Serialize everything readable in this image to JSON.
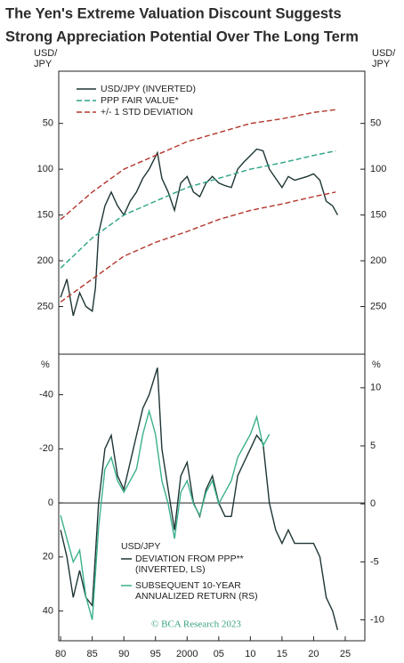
{
  "title": [
    "The Yen's Extreme Valuation Discount Suggests",
    "Strong Appreciation Potential Over The Long Term"
  ],
  "credit": "© BCA Research 2023",
  "chart_data": [
    {
      "type": "line",
      "y_label": [
        "USD/",
        "JPY"
      ],
      "inverted_y": true,
      "xlim": [
        1979.7,
        2028.1
      ],
      "ylim": [
        -7,
        302
      ],
      "yticks": [
        50,
        100,
        150,
        200,
        250
      ],
      "series": [
        {
          "name": "USD/JPY (INVERTED)",
          "color": "#1f3535",
          "dash": false,
          "x": [
            1980,
            1981,
            1982,
            1983,
            1984,
            1985,
            1985.5,
            1986,
            1987,
            1988,
            1989,
            1990,
            1991,
            1992,
            1993,
            1994,
            1995.3,
            1996,
            1997,
            1998,
            1999,
            2000,
            2001,
            2002,
            2003,
            2004,
            2005,
            2006,
            2007,
            2008,
            2009,
            2010,
            2011,
            2012,
            2013,
            2014,
            2015,
            2016,
            2017,
            2018,
            2019,
            2020,
            2021,
            2022,
            2023,
            2023.8
          ],
          "values": [
            240,
            220,
            260,
            235,
            250,
            255,
            230,
            170,
            140,
            125,
            140,
            150,
            135,
            125,
            110,
            100,
            82,
            110,
            125,
            145,
            115,
            108,
            125,
            130,
            115,
            108,
            115,
            118,
            120,
            100,
            92,
            85,
            78,
            80,
            100,
            110,
            120,
            108,
            112,
            110,
            108,
            105,
            112,
            135,
            140,
            150
          ]
        },
        {
          "name": "PPP FAIR VALUE*",
          "color": "#2aa385",
          "dash": true,
          "x": [
            1980,
            1985,
            1990,
            1995,
            2000,
            2005,
            2010,
            2015,
            2020,
            2023.5
          ],
          "values": [
            208,
            175,
            150,
            135,
            120,
            110,
            100,
            93,
            85,
            80
          ]
        },
        {
          "name": "+/- 1 STD DEVIATION",
          "color": "#b3362c",
          "dash": true,
          "x": [
            1980,
            1985,
            1990,
            1995,
            2000,
            2005,
            2010,
            2015,
            2020,
            2023.5
          ],
          "values": [
            155,
            125,
            100,
            85,
            70,
            60,
            50,
            45,
            38,
            35
          ]
        },
        {
          "color": "#b3362c",
          "dash": true,
          "x": [
            1980,
            1985,
            1990,
            1995,
            2000,
            2005,
            2010,
            2015,
            2020,
            2023.5
          ],
          "values": [
            245,
            220,
            195,
            180,
            168,
            155,
            145,
            138,
            130,
            125
          ]
        }
      ]
    },
    {
      "type": "line",
      "y_label": "%",
      "inverted_y": true,
      "xlim": [
        1979.7,
        2028.1
      ],
      "xticks": [
        {
          "value": 1980,
          "label": "80"
        },
        {
          "value": 1985,
          "label": "85"
        },
        {
          "value": 1990,
          "label": "90"
        },
        {
          "value": 1995,
          "label": "95"
        },
        2000,
        {
          "value": 2005,
          "label": "05"
        },
        10,
        15,
        20,
        25
      ],
      "ylim": [
        -55,
        51
      ],
      "yticks": [
        -40,
        -20,
        0,
        20,
        40
      ],
      "y2lim": [
        -11.8,
        12.9
      ],
      "y2ticks": [
        -10,
        -5,
        0,
        5,
        10
      ],
      "legend_title": "USD/JPY",
      "series": [
        {
          "name": [
            "DEVIATION FROM PPP**",
            "(INVERTED, LS)"
          ],
          "color": "#1f3535",
          "x": [
            1980,
            1981,
            1982,
            1983,
            1984,
            1985,
            1986,
            1987,
            1988,
            1989,
            1990,
            1991,
            1992,
            1993,
            1994,
            1995.3,
            1996,
            1997,
            1998,
            1999,
            2000,
            2001,
            2002,
            2003,
            2004,
            2005,
            2006,
            2007,
            2008,
            2009,
            2010,
            2011,
            2012,
            2013,
            2014,
            2015,
            2016,
            2017,
            2018,
            2019,
            2020,
            2021,
            2022,
            2023,
            2023.8
          ],
          "values": [
            10,
            20,
            35,
            25,
            35,
            38,
            0,
            -20,
            -25,
            -10,
            -5,
            -15,
            -25,
            -35,
            -40,
            -50,
            -20,
            -5,
            10,
            -10,
            -15,
            0,
            5,
            -5,
            -10,
            0,
            5,
            5,
            -10,
            -15,
            -20,
            -25,
            -22,
            0,
            10,
            15,
            10,
            15,
            15,
            15,
            15,
            20,
            35,
            40,
            47
          ]
        },
        {
          "name": [
            "SUBSEQUENT 10-YEAR",
            "ANNUALIZED RETURN (RS)"
          ],
          "color": "#3bb08c",
          "axis": "y2",
          "x": [
            1980,
            1981,
            1982,
            1983,
            1984,
            1985,
            1986,
            1987,
            1988,
            1989,
            1990,
            1991,
            1992,
            1993,
            1994,
            1995,
            1996,
            1997,
            1998,
            1999,
            2000,
            2001,
            2002,
            2003,
            2004,
            2005,
            2006,
            2007,
            2008,
            2009,
            2010,
            2011,
            2012,
            2013
          ],
          "values": [
            -1,
            -3,
            -5,
            -4,
            -8,
            -10,
            -2,
            3,
            4,
            2,
            1,
            2,
            3,
            6,
            8,
            6,
            2,
            0,
            -3,
            1,
            2,
            0,
            -1,
            1,
            2,
            0,
            1,
            2,
            4,
            5,
            6,
            7.5,
            5,
            6
          ]
        }
      ]
    }
  ]
}
